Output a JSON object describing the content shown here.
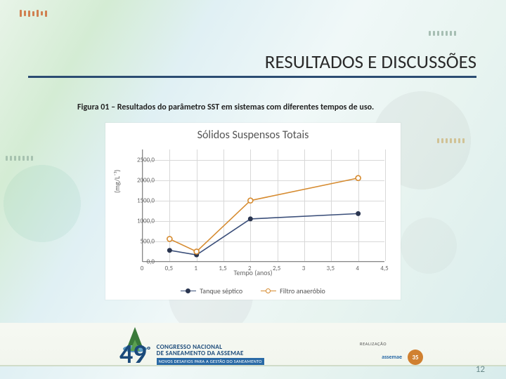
{
  "slide": {
    "title": "RESULTADOS E DISCUSSÕES",
    "caption": "Figura 01 – Resultados do parâmetro SST em sistemas com diferentes tempos de uso.",
    "page_number": "12"
  },
  "chart": {
    "type": "line",
    "title": "Sólidos Suspensos Totais",
    "title_fontsize": 16,
    "title_color": "#555555",
    "xlabel": "Tempo (anos)",
    "ylabel": "(mg/L⁻¹)",
    "label_fontsize": 10,
    "label_color": "#666666",
    "tick_fontsize": 9,
    "background_color": "#ffffff",
    "plot_border_color": "#888888",
    "grid_color": "#d8d8d8",
    "grid": true,
    "xlim": [
      0,
      4.5
    ],
    "ylim": [
      0,
      2750
    ],
    "xticks": [
      0,
      0.5,
      1,
      1.5,
      2,
      2.5,
      3,
      3.5,
      4,
      4.5
    ],
    "xtick_labels": [
      "0",
      "0,5",
      "1",
      "1,5",
      "2",
      "2,5",
      "3",
      "3,5",
      "4",
      "4,5"
    ],
    "yticks": [
      0,
      500,
      1000,
      1500,
      2000,
      2500
    ],
    "ytick_labels": [
      "0,0",
      "500,0",
      "1000,0",
      "1500,0",
      "2000,0",
      "2500,0"
    ],
    "line_width": 1.6,
    "marker_size": 7,
    "series": [
      {
        "name": "Tanque séptico",
        "color": "#3b4f7a",
        "marker_fill": "#2a3550",
        "marker": "circle",
        "x": [
          0.5,
          1,
          2,
          4
        ],
        "y": [
          280,
          170,
          1050,
          1180
        ]
      },
      {
        "name": "Filtro anaeróbio",
        "color": "#d68b30",
        "marker_fill": "#ffffff",
        "marker_stroke": "#d68b30",
        "marker": "circle-open",
        "x": [
          0.5,
          1,
          2,
          4
        ],
        "y": [
          560,
          250,
          1500,
          2050
        ]
      }
    ],
    "legend": {
      "position": "bottom-center",
      "items": [
        "Tanque séptico",
        "Filtro anaeróbio"
      ]
    }
  },
  "footer": {
    "event_number": "49",
    "event_suffix": "º",
    "event_name_l1": "CONGRESSO NACIONAL",
    "event_name_l2": "DE SANEAMENTO DA ASSEMAE",
    "event_tagline": "NOVOS DESAFIOS PARA A GESTÃO DO SANEAMENTO",
    "realizacao_label": "REALIZAÇÃO",
    "org": "assemae",
    "badge": "35",
    "colors": {
      "brand_blue": "#1b4a7a",
      "tagline_bg": "#2a6aa6",
      "medal_bg": "#d08030"
    }
  }
}
